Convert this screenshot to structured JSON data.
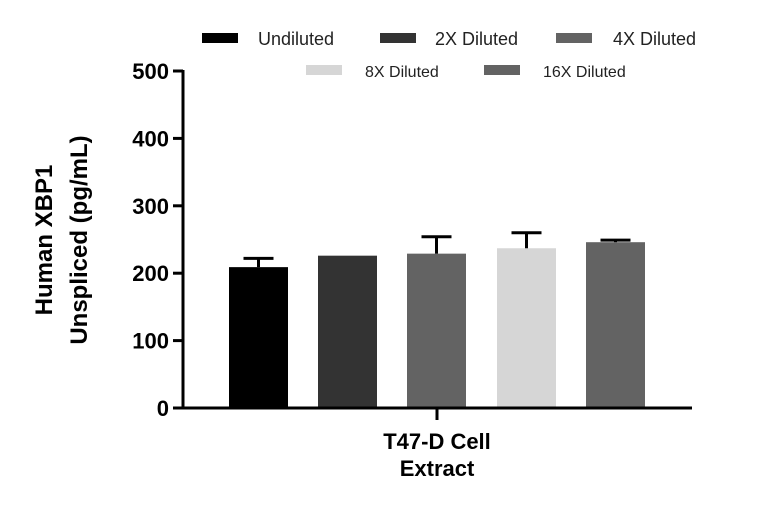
{
  "chart_data": {
    "type": "bar",
    "title": "",
    "xlabel": [
      "T47-D Cell",
      "Extract"
    ],
    "ylabel": [
      "Human XBP1",
      "Unspliced (pg/mL)"
    ],
    "ylim": [
      0,
      500
    ],
    "yticks": [
      0,
      100,
      200,
      300,
      400,
      500
    ],
    "grid": false,
    "legend_position": "top",
    "categories": [
      "T47-D Cell Extract"
    ],
    "series": [
      {
        "name": "Undiluted",
        "values": [
          209
        ],
        "error": [
          13
        ],
        "color": "#000000"
      },
      {
        "name": "2X Diluted",
        "values": [
          226
        ],
        "error": [
          0
        ],
        "color": "#333333"
      },
      {
        "name": "4X Diluted",
        "values": [
          229
        ],
        "error": [
          25
        ],
        "color": "#636363"
      },
      {
        "name": "8X Diluted",
        "values": [
          237
        ],
        "error": [
          23
        ],
        "color": "#d6d6d6"
      },
      {
        "name": "16X Diluted",
        "values": [
          246
        ],
        "error": [
          3
        ],
        "color": "#636363"
      }
    ]
  }
}
